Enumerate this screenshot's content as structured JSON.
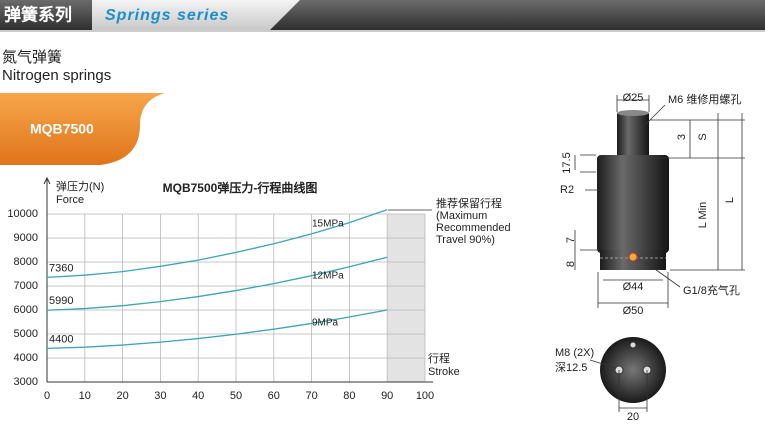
{
  "header": {
    "title_cn": "弹簧系列",
    "title_en": "Springs series"
  },
  "section": {
    "title_cn": "氮气弹簧",
    "title_en": "Nitrogen springs",
    "model": "MQB7500"
  },
  "chart_data": {
    "type": "line",
    "title": "MQB7500弹压力-行程曲线图",
    "y_label": [
      "弹压力(N)",
      "Force"
    ],
    "x_label": [
      "行程",
      "Stroke"
    ],
    "annotation": [
      "推荐保留行程",
      "(Maximum",
      "Recommended",
      "Travel 90%)"
    ],
    "x": [
      0,
      10,
      20,
      30,
      40,
      50,
      60,
      70,
      80,
      90
    ],
    "series": [
      {
        "name": "15MPa",
        "color": "#3aa6b9",
        "values": [
          7360,
          7450,
          7600,
          7820,
          8080,
          8400,
          8760,
          9170,
          9640,
          10180
        ]
      },
      {
        "name": "12MPa",
        "color": "#3aa6b9",
        "values": [
          5990,
          6060,
          6180,
          6350,
          6560,
          6810,
          7100,
          7430,
          7800,
          8200
        ]
      },
      {
        "name": "9MPa",
        "color": "#3aa6b9",
        "values": [
          4400,
          4450,
          4540,
          4660,
          4810,
          4990,
          5200,
          5440,
          5710,
          6000
        ]
      }
    ],
    "xlim": [
      0,
      100
    ],
    "ylim": [
      3000,
      11500
    ],
    "xticks": [
      0,
      10,
      20,
      30,
      40,
      50,
      60,
      70,
      80,
      90,
      100
    ],
    "yticks": [
      3000,
      4000,
      5000,
      6000,
      7000,
      8000,
      9000,
      10000
    ],
    "shaded_xrange": [
      90,
      100
    ],
    "grid": true
  },
  "drawing": {
    "rod_dia": "Ø25",
    "thread": "M6 维修用螺孔",
    "s_val": "3",
    "s": "S",
    "top": "17.5",
    "radius": "R2",
    "lmin": "L Min",
    "l": "L",
    "seven": "7",
    "eight": "8",
    "d44": "Ø44",
    "port": "G1/8充气孔",
    "d50": "Ø50",
    "m8": "M8 (2X)",
    "depth": "深12.5",
    "width20": "20"
  }
}
